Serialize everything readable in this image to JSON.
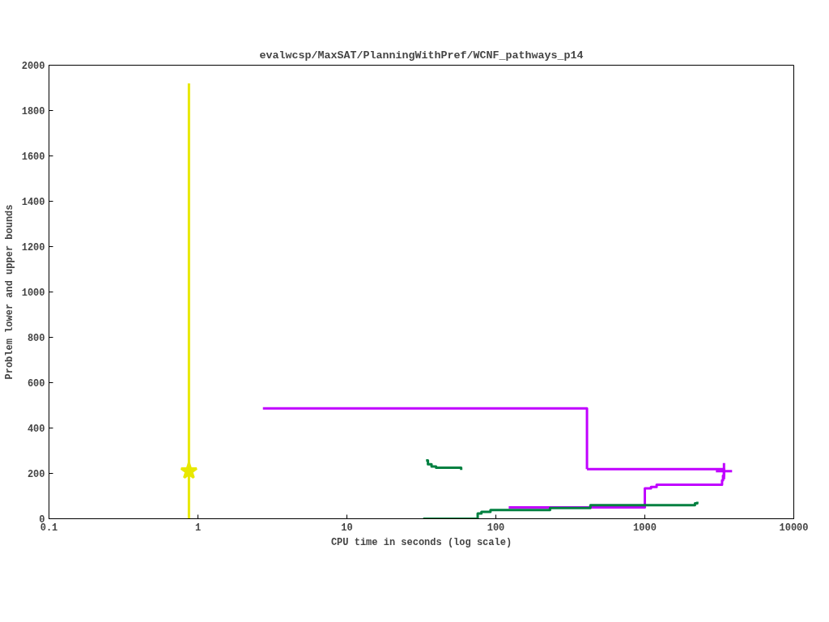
{
  "chart_data": {
    "type": "step",
    "title": "evalwcsp/MaxSAT/PlanningWithPref/WCNF_pathways_p14",
    "xlabel": "CPU time in seconds (log scale)",
    "ylabel": "Problem lower and upper bounds",
    "log": "x",
    "xlim": [
      0.1,
      10000
    ],
    "xticks": [
      0.1,
      1,
      10,
      100,
      1000,
      10000
    ],
    "ylim": [
      0,
      2000
    ],
    "yticks": [
      0,
      200,
      400,
      600,
      800,
      1000,
      1200,
      1400,
      1600,
      1800,
      2000
    ],
    "grid": false,
    "series": [
      {
        "color": "#c000ff",
        "marker": "none",
        "x": [
          2.73,
          409,
          409
        ],
        "values": [
          487,
          487,
          219
        ]
      },
      {
        "color": "#c000ff",
        "marker": "cross",
        "x": [
          409,
          3400
        ],
        "values": [
          219,
          210
        ]
      },
      {
        "color": "#c000ff",
        "marker": "none",
        "x": [
          122,
          1000,
          1100,
          1200,
          3300,
          3350,
          3400
        ],
        "values": [
          50,
          134,
          140,
          150,
          170,
          190,
          210
        ]
      },
      {
        "color": "#e8e800",
        "marker": "star",
        "x": [
          0.87,
          0.87
        ],
        "values": [
          1920,
          210
        ]
      },
      {
        "color": "#e8e800",
        "marker": "none",
        "x": [
          0.87,
          0.87
        ],
        "values": [
          0,
          210
        ]
      },
      {
        "color": "#008040",
        "marker": "none",
        "x": [
          32.5,
          75.5,
          80,
          92,
          231,
          431,
          2170,
          2250
        ],
        "values": [
          0,
          23,
          30,
          38,
          47,
          60,
          68,
          75
        ]
      },
      {
        "color": "#008040",
        "marker": "none",
        "x": [
          34,
          35,
          37,
          39.7,
          58.5,
          58.5
        ],
        "values": [
          257,
          240,
          230,
          225,
          225,
          215
        ]
      }
    ]
  }
}
